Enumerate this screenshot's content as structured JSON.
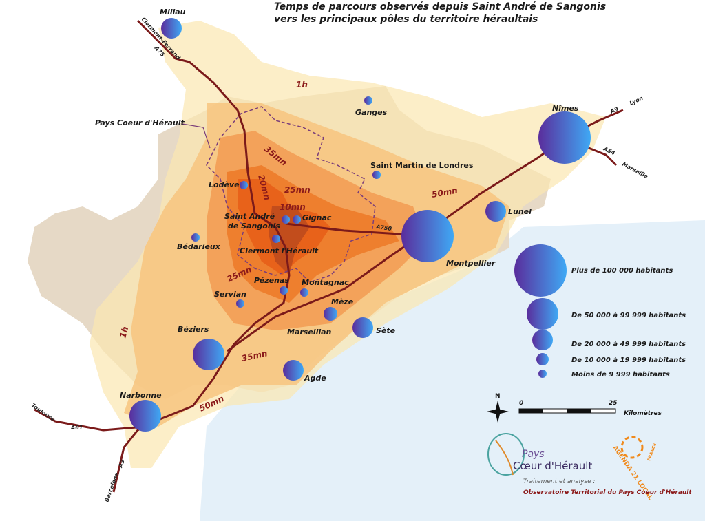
{
  "title": {
    "line1": "Temps de parcours observés depuis Saint André de Sangonis",
    "line2": "vers les principaux pôles du territoire héraultais"
  },
  "cities": [
    "Millau",
    "Ganges",
    "Nîmes",
    "Saint Martin de Londres",
    "Lodève",
    "Gignac",
    "Saint André",
    "de Sangonis",
    "Bédarieux",
    "Clermont l'Hérault",
    "Lunel",
    "Montpellier",
    "Pézenas",
    "Montagnac",
    "Servian",
    "Mèze",
    "Sète",
    "Marseillan",
    "Béziers",
    "Agde",
    "Narbonne"
  ],
  "isochrones": [
    "1h",
    "1h",
    "35mn",
    "35mn",
    "20mn",
    "25mn",
    "25mn",
    "10mn",
    "50mn",
    "50mn"
  ],
  "roads": [
    "Clermont-Ferrand",
    "A75",
    "A9",
    "Lyon",
    "A54",
    "Marseille",
    "A750",
    "Toulouse",
    "A61",
    "Barcelone",
    "A9"
  ],
  "boundary_label": "Pays Coeur d'Hérault",
  "legend": [
    "Plus de  100 000 habitants",
    "De 50 000 à 99 999 habitants",
    "De 20 000 à 49 999 habitants",
    "De 10 000 à 19 999 habitants",
    "Moins de 9 999 habitants"
  ],
  "scale": {
    "start": 0,
    "end": 25,
    "unit": "Kilomètres"
  },
  "north": "N",
  "logos": {
    "pays_line1": "Pays",
    "pays_line2": "Cœur d'Hérault",
    "agenda": "AGENDA 21 LOCAL",
    "agenda_sub": "FRANCE"
  },
  "credits": {
    "line1": "Traitement et analyse :",
    "line2": "Observatoire Territorial du Pays Coeur d'Hérault"
  }
}
